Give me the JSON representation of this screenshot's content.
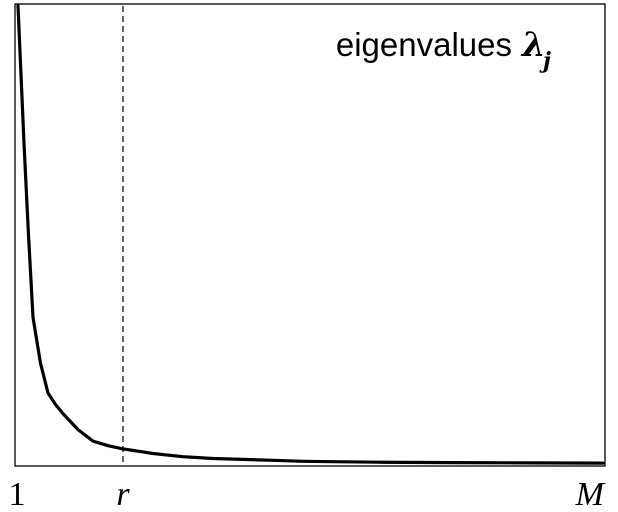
{
  "chart_data": {
    "type": "line",
    "annotation": {
      "text": "eigenvalues ",
      "symbol": "λ",
      "subscript": "j"
    },
    "x_ticks": [
      {
        "label": "1",
        "x": 1,
        "italic": false
      },
      {
        "label": "r",
        "x": 8,
        "italic": true
      },
      {
        "label": "M",
        "x": 40,
        "italic": true
      }
    ],
    "xlim": [
      1,
      40
    ],
    "ylim": [
      0,
      100
    ],
    "marker_line": {
      "x": 8,
      "style": "dashed"
    },
    "grid": false,
    "series": [
      {
        "x": [
          1,
          1.2,
          1.4,
          1.7,
          2,
          2.5,
          3,
          3.5,
          4,
          5,
          6,
          7,
          8,
          9,
          10,
          12,
          14,
          16,
          18,
          20,
          22,
          25,
          30,
          35,
          40
        ],
        "y": [
          100,
          85,
          70,
          50,
          32,
          22,
          15.5,
          13,
          11,
          7.5,
          5,
          4,
          3.3,
          2.8,
          2.3,
          1.6,
          1.2,
          1,
          0.8,
          0.6,
          0.5,
          0.4,
          0.3,
          0.25,
          0.2
        ]
      }
    ]
  }
}
